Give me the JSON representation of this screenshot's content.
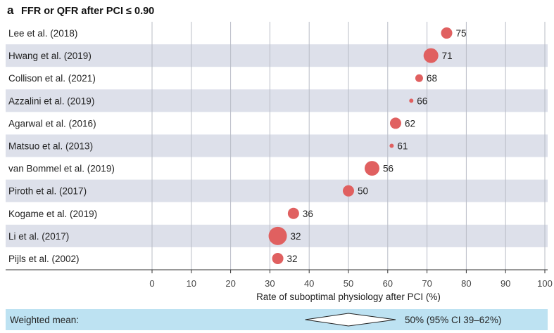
{
  "chart_data": {
    "type": "scatter",
    "panel_letter": "a",
    "title": "FFR or QFR after PCI ≤ 0.90",
    "xlabel": "Rate of suboptimal physiology after PCI (%)",
    "xlim": [
      0,
      100
    ],
    "xticks": [
      0,
      10,
      20,
      30,
      40,
      50,
      60,
      70,
      80,
      90,
      100
    ],
    "rows": [
      {
        "label": "Lee et al. (2018)",
        "value": 75,
        "marker_size": "medium"
      },
      {
        "label": "Hwang et al. (2019)",
        "value": 71,
        "marker_size": "large"
      },
      {
        "label": "Collison et al. (2021)",
        "value": 68,
        "marker_size": "small"
      },
      {
        "label": "Azzalini et al. (2019)",
        "value": 66,
        "marker_size": "tiny"
      },
      {
        "label": "Agarwal et al. (2016)",
        "value": 62,
        "marker_size": "medium"
      },
      {
        "label": "Matsuo et al. (2013)",
        "value": 61,
        "marker_size": "tiny"
      },
      {
        "label": "van Bommel et al. (2019)",
        "value": 56,
        "marker_size": "large"
      },
      {
        "label": "Piroth et al. (2017)",
        "value": 50,
        "marker_size": "medium"
      },
      {
        "label": "Kogame et al. (2019)",
        "value": 36,
        "marker_size": "medium"
      },
      {
        "label": "Li et al. (2017)",
        "value": 32,
        "marker_size": "xlarge"
      },
      {
        "label": "Pijls et al. (2002)",
        "value": 32,
        "marker_size": "medium"
      }
    ],
    "summary": {
      "label": "Weighted mean:",
      "estimate": 50,
      "ci_low": 39,
      "ci_high": 62,
      "text": "50% (95% CI 39–62%)"
    },
    "colors": {
      "marker": "#e06060",
      "band": "#dde0ea",
      "grid": "#b8bcc6",
      "summary_band": "#bde2f2"
    }
  }
}
